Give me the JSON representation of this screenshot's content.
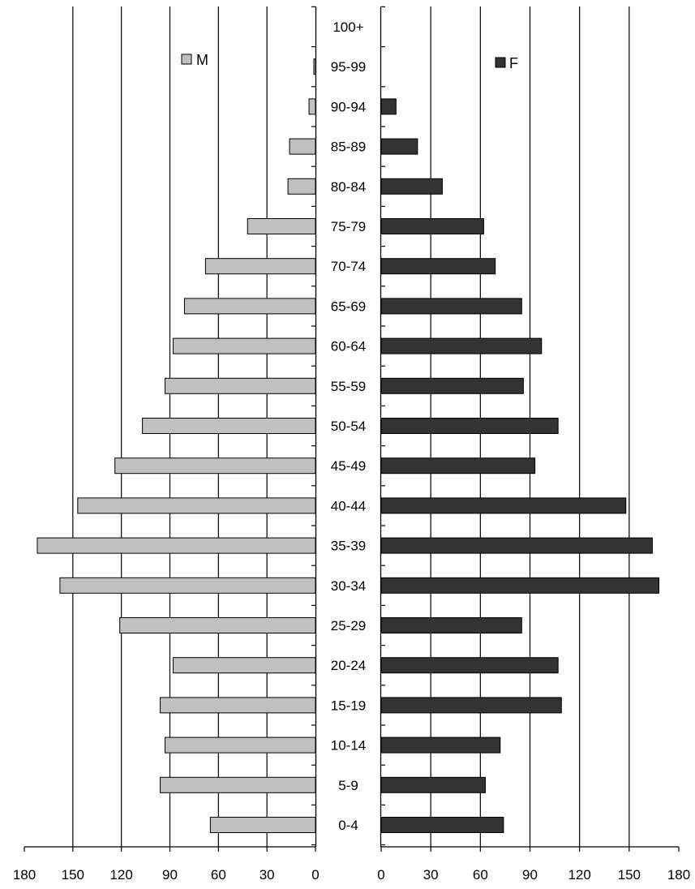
{
  "chart_data": {
    "type": "bar",
    "orientation": "horizontal",
    "layout": "population-pyramid",
    "categories": [
      "100+",
      "95-99",
      "90-94",
      "85-89",
      "80-84",
      "75-79",
      "70-74",
      "65-69",
      "60-64",
      "55-59",
      "50-54",
      "45-49",
      "40-44",
      "35-39",
      "30-34",
      "25-29",
      "20-24",
      "15-19",
      "10-14",
      "5-9",
      "0-4"
    ],
    "series": [
      {
        "name": "M",
        "color": "#c0c0c0",
        "values": [
          0,
          1,
          4,
          16,
          17,
          42,
          68,
          81,
          88,
          93,
          107,
          124,
          147,
          172,
          158,
          121,
          88,
          96,
          93,
          96,
          65
        ]
      },
      {
        "name": "F",
        "color": "#333333",
        "values": [
          0,
          0,
          9,
          22,
          37,
          62,
          69,
          85,
          97,
          86,
          107,
          93,
          148,
          164,
          168,
          85,
          107,
          109,
          72,
          63,
          74
        ]
      }
    ],
    "xlim": [
      0,
      180
    ],
    "ticks_left": [
      "180",
      "150",
      "120",
      "90",
      "60",
      "30",
      "0"
    ],
    "ticks_right": [
      "0",
      "30",
      "60",
      "90",
      "120",
      "150",
      "180"
    ],
    "grid": true,
    "legend_placement": "top"
  }
}
